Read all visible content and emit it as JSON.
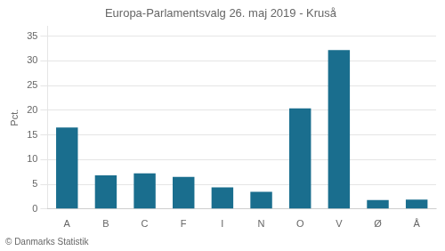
{
  "chart_data": {
    "type": "bar",
    "title": "Europa-Parlamentsvalg 26. maj 2019 - Kruså",
    "ylabel": "Pct.",
    "annotations": [
      "© Danmarks Statistik"
    ],
    "categories": [
      "A",
      "B",
      "C",
      "F",
      "I",
      "N",
      "O",
      "V",
      "Ø",
      "Å"
    ],
    "values": [
      16.5,
      6.8,
      7.2,
      6.5,
      4.4,
      3.5,
      20.4,
      32.2,
      1.8,
      1.9
    ],
    "color": "#1a6e8e",
    "ylim": [
      0,
      37
    ],
    "yticks": [
      0,
      5,
      10,
      15,
      20,
      25,
      30,
      35
    ],
    "grid": true
  }
}
